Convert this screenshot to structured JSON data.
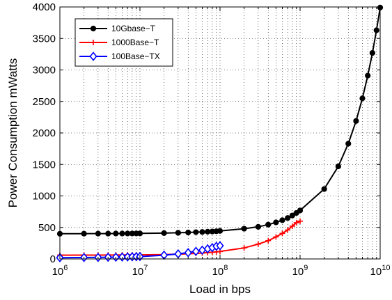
{
  "chart_data": {
    "type": "line",
    "title": "",
    "xlabel": "Load in bps",
    "ylabel": "Power Consumption mWatts",
    "xscale": "log",
    "xlim": [
      1000000,
      10000000000
    ],
    "ylim": [
      0,
      4000
    ],
    "x_tick_labels": [
      {
        "base": "10",
        "exp": "6"
      },
      {
        "base": "10",
        "exp": "7"
      },
      {
        "base": "10",
        "exp": "8"
      },
      {
        "base": "10",
        "exp": "9"
      },
      {
        "base": "10",
        "exp": "10"
      }
    ],
    "y_ticks": [
      "0",
      "500",
      "1000",
      "1500",
      "2000",
      "2500",
      "3000",
      "3500",
      "4000"
    ],
    "grid": true,
    "legend_position": "top-left",
    "series": [
      {
        "name": "10Gbase−T",
        "color": "#000000",
        "marker": "circle",
        "x": [
          1000000,
          2000000,
          3000000,
          4000000,
          5000000,
          6000000,
          7000000,
          8000000,
          9000000,
          10000000,
          20000000,
          30000000,
          40000000,
          50000000,
          60000000,
          70000000,
          80000000,
          90000000,
          100000000,
          200000000,
          300000000,
          400000000,
          500000000,
          600000000,
          700000000,
          800000000,
          900000000,
          1000000000,
          2000000000,
          3000000000,
          4000000000,
          5000000000,
          6000000000,
          7000000000,
          8000000000,
          9000000000,
          10000000000
        ],
        "values": [
          400,
          401,
          402,
          402,
          403,
          403,
          404,
          404,
          405,
          405,
          410,
          415,
          420,
          425,
          428,
          432,
          436,
          440,
          445,
          480,
          510,
          545,
          580,
          615,
          650,
          690,
          730,
          770,
          1110,
          1470,
          1830,
          2190,
          2550,
          2910,
          3270,
          3630,
          3990
        ]
      },
      {
        "name": "1000Base−T",
        "color": "#ff0000",
        "marker": "plus",
        "x": [
          1000000,
          2000000,
          3000000,
          4000000,
          5000000,
          6000000,
          7000000,
          8000000,
          9000000,
          10000000,
          20000000,
          30000000,
          40000000,
          50000000,
          60000000,
          70000000,
          80000000,
          90000000,
          100000000,
          200000000,
          300000000,
          400000000,
          500000000,
          600000000,
          700000000,
          800000000,
          900000000,
          1000000000
        ],
        "values": [
          60,
          61,
          61,
          62,
          62,
          63,
          63,
          64,
          64,
          65,
          70,
          76,
          82,
          88,
          94,
          100,
          106,
          112,
          118,
          175,
          235,
          290,
          350,
          405,
          460,
          520,
          575,
          600
        ]
      },
      {
        "name": "100Base−TX",
        "color": "#0000ff",
        "marker": "diamond",
        "x": [
          1000000,
          2000000,
          3000000,
          4000000,
          5000000,
          6000000,
          7000000,
          8000000,
          9000000,
          10000000,
          20000000,
          30000000,
          40000000,
          50000000,
          60000000,
          70000000,
          80000000,
          90000000,
          100000000
        ],
        "values": [
          20,
          22,
          24,
          26,
          28,
          30,
          32,
          34,
          36,
          38,
          60,
          80,
          100,
          120,
          140,
          160,
          180,
          200,
          210
        ]
      }
    ]
  }
}
